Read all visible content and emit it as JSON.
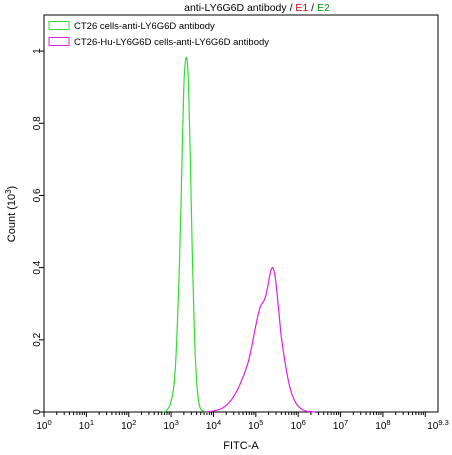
{
  "chart_data": {
    "type": "line",
    "title": {
      "prefix": "anti-LY6G6D antibody",
      "sep1": " / ",
      "e1": "E1",
      "sep2": " / ",
      "e2": "E2"
    },
    "title_colors": {
      "prefix": "#000000",
      "e1": "#cc0000",
      "e2": "#009900"
    },
    "xlabel": "FITC-A",
    "ylabel_main": "Count (10",
    "ylabel_exp": "3",
    "ylabel_end": ")",
    "x_scale": "log10",
    "xlim": [
      1,
      1995262315
    ],
    "ylim": [
      0,
      1.1
    ],
    "x_ticks": [
      {
        "value": 1,
        "base": "10",
        "exp": "0"
      },
      {
        "value": 10,
        "base": "10",
        "exp": "1"
      },
      {
        "value": 100,
        "base": "10",
        "exp": "2"
      },
      {
        "value": 1000,
        "base": "10",
        "exp": "3"
      },
      {
        "value": 10000,
        "base": "10",
        "exp": "4"
      },
      {
        "value": 100000,
        "base": "10",
        "exp": "5"
      },
      {
        "value": 1000000,
        "base": "10",
        "exp": "6"
      },
      {
        "value": 10000000,
        "base": "10",
        "exp": "7"
      },
      {
        "value": 100000000,
        "base": "10",
        "exp": "8"
      },
      {
        "value": 1995262315,
        "base": "10",
        "exp": "9.3"
      }
    ],
    "y_ticks": [
      {
        "value": 0,
        "label": "0"
      },
      {
        "value": 0.2,
        "label": "0.2"
      },
      {
        "value": 0.4,
        "label": "0.4"
      },
      {
        "value": 0.6,
        "label": "0.6"
      },
      {
        "value": 0.8,
        "label": "0.8"
      },
      {
        "value": 1.0,
        "label": "1"
      }
    ],
    "grid": false,
    "legend_position": "top-left",
    "series": [
      {
        "name": "CT26 cells-anti-LY6G6D antibody",
        "color": "#33dd33",
        "x": [
          631,
          794,
          1000,
          1259,
          1585,
          1778,
          1995,
          2239,
          2512,
          2818,
          3162,
          3548,
          3981,
          4467,
          5012,
          6310,
          7943
        ],
        "y": [
          0,
          0.005,
          0.03,
          0.12,
          0.42,
          0.66,
          0.9,
          0.98,
          0.94,
          0.72,
          0.44,
          0.22,
          0.09,
          0.03,
          0.008,
          0.001,
          0
        ]
      },
      {
        "name": "CT26-Hu-LY6G6D cells-anti-LY6G6D antibody",
        "color": "#dd22dd",
        "x": [
          6310,
          10000,
          15849,
          25119,
          39811,
          63096,
          79433,
          100000,
          125893,
          158489,
          177828,
          199526,
          223872,
          251189,
          281838,
          316228,
          354813,
          398107,
          501187,
          630957,
          794328,
          1000000,
          1258925,
          1584893,
          1995262,
          2511886
        ],
        "y": [
          0,
          0.003,
          0.01,
          0.03,
          0.07,
          0.13,
          0.18,
          0.24,
          0.29,
          0.31,
          0.33,
          0.36,
          0.39,
          0.4,
          0.38,
          0.33,
          0.27,
          0.21,
          0.13,
          0.07,
          0.035,
          0.016,
          0.007,
          0.002,
          0.001,
          0
        ]
      }
    ]
  }
}
